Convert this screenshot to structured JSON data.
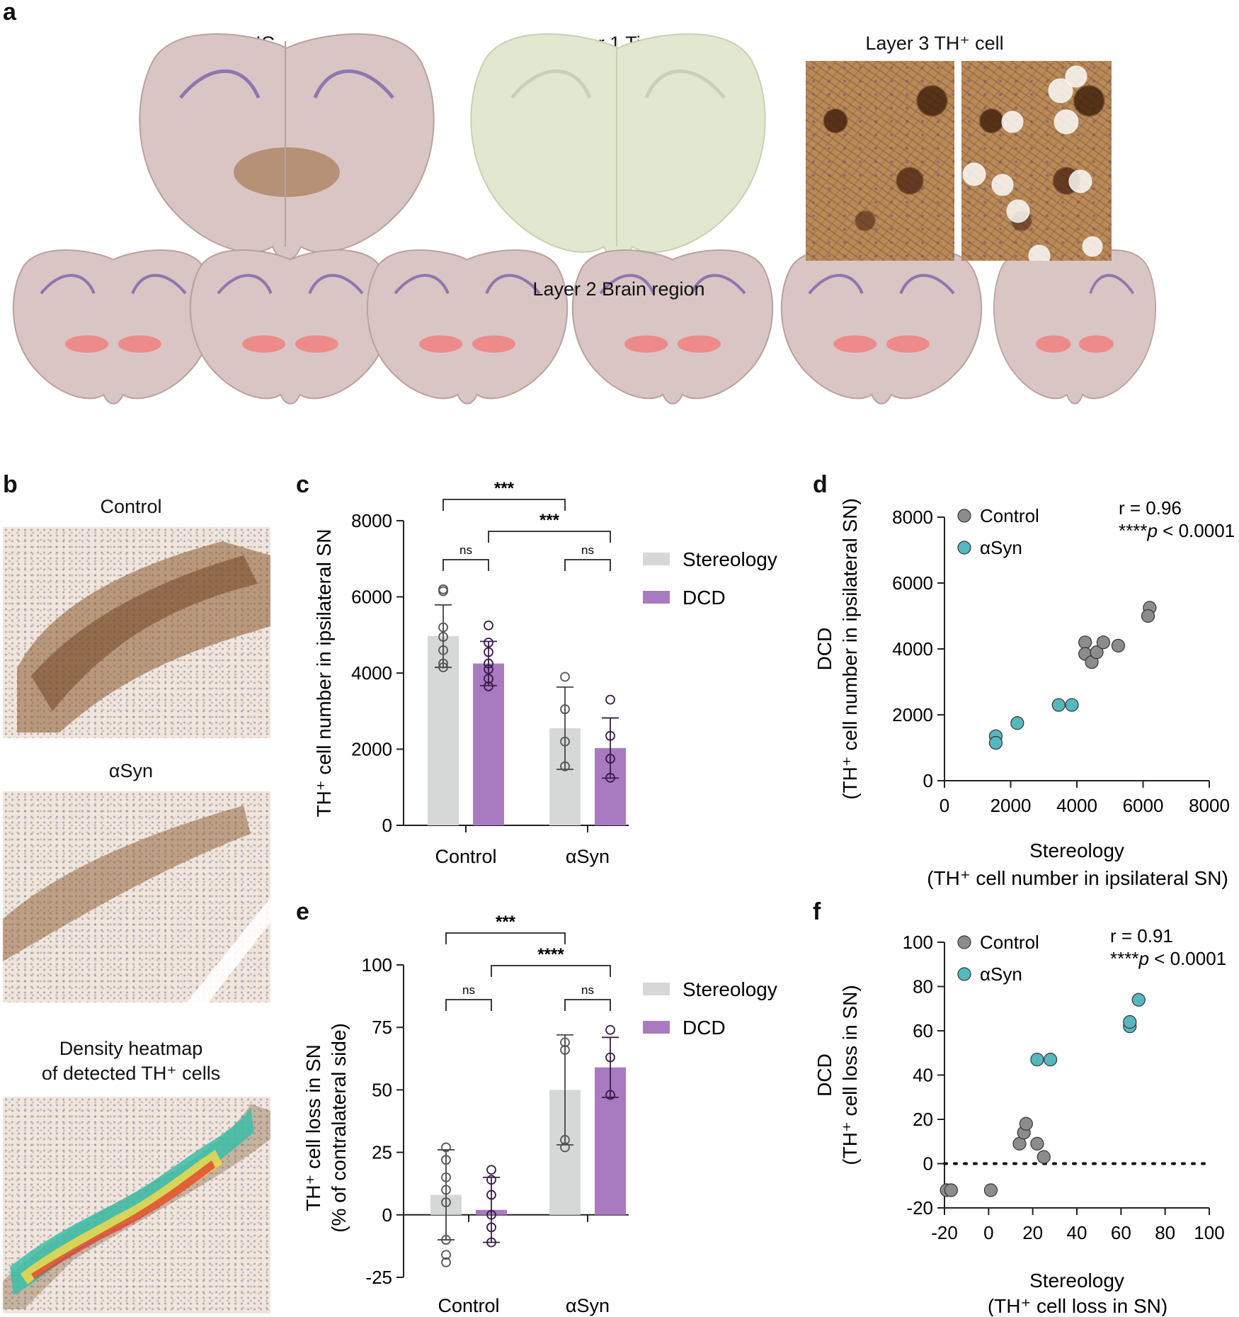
{
  "panels": {
    "a": {
      "letter": "a",
      "captions": {
        "th_ihc": "TH IHC",
        "layer1": "Layer 1 Tissue",
        "layer3": "Layer 3 TH⁺ cell",
        "layer2": "Layer 2 Brain region"
      }
    },
    "b": {
      "letter": "b",
      "captions": {
        "control": "Control",
        "asyn": "αSyn",
        "heatmap_line1": "Density heatmap",
        "heatmap_line2": "of detected TH⁺ cells"
      }
    },
    "c": {
      "letter": "c"
    },
    "d": {
      "letter": "d"
    },
    "e": {
      "letter": "e"
    },
    "f": {
      "letter": "f"
    }
  },
  "colors": {
    "stereology": "#d6d8d7",
    "dcd": "#a87bc0",
    "control_dot": "#8c8c8c",
    "asyn_dot": "#55b8be",
    "region_highlight": "#f08080",
    "tissue": "#d8c8c6",
    "tissue_layer1": "#dfe6cc"
  },
  "chart_data": [
    {
      "panel": "c",
      "type": "bar",
      "categories": [
        "Control",
        "αSyn"
      ],
      "ylabel": "TH⁺ cell number in ipsilateral SN",
      "ylim": [
        0,
        8000
      ],
      "yticks": [
        "0",
        "2000",
        "4000",
        "6000",
        "8000"
      ],
      "legend": [
        "Stereology",
        "DCD"
      ],
      "legend_placement": "right",
      "series": [
        {
          "name": "Stereology",
          "values": [
            4970,
            2550
          ],
          "sd": [
            820,
            1080
          ],
          "points": [
            [
              6200,
              6150,
              5200,
              4950,
              4600,
              4250,
              4150
            ],
            [
              3900,
              3050,
              2200,
              1550
            ]
          ]
        },
        {
          "name": "DCD",
          "values": [
            4250,
            2030
          ],
          "sd": [
            580,
            790
          ],
          "points": [
            [
              5250,
              4800,
              4550,
              4250,
              4100,
              3850,
              3650
            ],
            [
              3300,
              2350,
              1750,
              1250
            ]
          ]
        }
      ],
      "significance": [
        {
          "label": "***",
          "from": "Control/Stereology",
          "to": "αSyn/Stereology"
        },
        {
          "label": "***",
          "from": "Control/DCD",
          "to": "αSyn/DCD"
        },
        {
          "label": "ns",
          "from": "Control/Stereology",
          "to": "Control/DCD"
        },
        {
          "label": "ns",
          "from": "αSyn/Stereology",
          "to": "αSyn/DCD"
        }
      ]
    },
    {
      "panel": "d",
      "type": "scatter",
      "xlabel_line1": "Stereology",
      "xlabel_line2": "(TH⁺ cell number in ipsilateral SN)",
      "ylabel_line1": "DCD",
      "ylabel_line2": "(TH⁺ cell number in ipsilateral SN)",
      "xlim": [
        0,
        8000
      ],
      "ylim": [
        0,
        8000
      ],
      "xticks": [
        "0",
        "2000",
        "4000",
        "6000",
        "8000"
      ],
      "yticks": [
        "0",
        "2000",
        "4000",
        "6000",
        "8000"
      ],
      "legend_placement": "top-left",
      "stats": {
        "r": "r = 0.96",
        "p_prefix": "****",
        "p_italic": "p",
        "p_rest": " < 0.0001"
      },
      "series": [
        {
          "name": "Control",
          "points": [
            [
              4250,
              4200
            ],
            [
              4250,
              3850
            ],
            [
              4450,
              3600
            ],
            [
              4600,
              3900
            ],
            [
              4800,
              4200
            ],
            [
              5250,
              4100
            ],
            [
              6200,
              5250
            ],
            [
              6150,
              5000
            ]
          ]
        },
        {
          "name": "αSyn",
          "points": [
            [
              1550,
              1350
            ],
            [
              1550,
              1150
            ],
            [
              2200,
              1750
            ],
            [
              3450,
              2300
            ],
            [
              3850,
              2300
            ]
          ]
        }
      ]
    },
    {
      "panel": "e",
      "type": "bar",
      "categories": [
        "Control",
        "αSyn"
      ],
      "ylabel_line1": "TH⁺ cell loss in SN",
      "ylabel_line2": "(% of contralateral side)",
      "ylim": [
        -25,
        100
      ],
      "yticks": [
        "-25",
        "0",
        "25",
        "50",
        "75",
        "100"
      ],
      "legend": [
        "Stereology",
        "DCD"
      ],
      "legend_placement": "right",
      "series": [
        {
          "name": "Stereology",
          "values": [
            8,
            50
          ],
          "sd": [
            18,
            22
          ],
          "points": [
            [
              27,
              22,
              15,
              10,
              5,
              -10,
              -16,
              -19
            ],
            [
              69,
              66,
              27,
              30
            ]
          ]
        },
        {
          "name": "DCD",
          "values": [
            2,
            59
          ],
          "sd": [
            13,
            12
          ],
          "points": [
            [
              18,
              14,
              8,
              0,
              -5,
              -11
            ],
            [
              74,
              63,
              48
            ]
          ]
        }
      ],
      "significance": [
        {
          "label": "***",
          "from": "Control/Stereology",
          "to": "αSyn/Stereology"
        },
        {
          "label": "****",
          "from": "Control/DCD",
          "to": "αSyn/DCD"
        },
        {
          "label": "ns",
          "from": "Control/Stereology",
          "to": "Control/DCD"
        },
        {
          "label": "ns",
          "from": "αSyn/Stereology",
          "to": "αSyn/DCD"
        }
      ]
    },
    {
      "panel": "f",
      "type": "scatter",
      "xlabel_line1": "Stereology",
      "xlabel_line2": "(TH⁺ cell loss in SN)",
      "ylabel_line1": "DCD",
      "ylabel_line2": "(TH⁺ cell loss in SN)",
      "xlim": [
        -20,
        100
      ],
      "ylim": [
        -20,
        100
      ],
      "xticks": [
        "-20",
        "0",
        "20",
        "40",
        "60",
        "80",
        "100"
      ],
      "yticks": [
        "-20",
        "0",
        "20",
        "40",
        "60",
        "80",
        "100"
      ],
      "reference_line": 0,
      "legend_placement": "top-left",
      "stats": {
        "r": "r = 0.91",
        "p_prefix": "****",
        "p_italic": "p",
        "p_rest": " < 0.0001"
      },
      "series": [
        {
          "name": "Control",
          "points": [
            [
              -19,
              -12
            ],
            [
              -17,
              -12
            ],
            [
              1,
              -12
            ],
            [
              14,
              9
            ],
            [
              16,
              14
            ],
            [
              17,
              18
            ],
            [
              22,
              9
            ],
            [
              25,
              3
            ]
          ]
        },
        {
          "name": "αSyn",
          "points": [
            [
              22,
              47
            ],
            [
              28,
              47
            ],
            [
              64,
              62
            ],
            [
              64,
              64
            ],
            [
              68,
              74
            ]
          ]
        }
      ]
    }
  ]
}
